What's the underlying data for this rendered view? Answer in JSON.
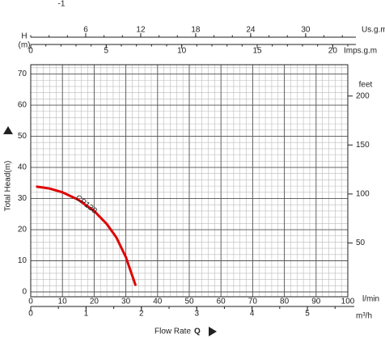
{
  "chart_data": {
    "type": "line",
    "corner_note": "-1",
    "y_title": "Total Head(m)",
    "x_title": "Flow Rate",
    "x_symbol": "Q",
    "head_label": "H",
    "head_unit": "(m)",
    "x_label": "l/min",
    "xlim": [
      0,
      100
    ],
    "xticks": [
      0,
      10,
      20,
      30,
      40,
      50,
      60,
      70,
      80,
      90,
      100
    ],
    "ylim": [
      0,
      73
    ],
    "yticks": [
      0,
      10,
      20,
      30,
      40,
      50,
      60,
      70
    ],
    "grid": true,
    "y2_label": "feet",
    "y2lim": [
      0,
      232
    ],
    "y2ticks": [
      50,
      100,
      150,
      200
    ],
    "top_axes": [
      {
        "label": "Us.g.m",
        "xlim": [
          0,
          34.6
        ],
        "xticks": [
          6,
          12,
          18,
          24,
          30
        ]
      },
      {
        "label": "Imps.g.m",
        "xlim": [
          0,
          21
        ],
        "xticks": [
          0,
          5,
          10,
          15,
          20
        ]
      }
    ],
    "bottom_axis": {
      "label": "m³/h",
      "xlim": [
        0,
        5.73
      ],
      "xticks": [
        0,
        1,
        2,
        3,
        4,
        5
      ]
    },
    "series": [
      {
        "name": "CP130",
        "color": "#e00000",
        "x": [
          2,
          6,
          10,
          15,
          20,
          24,
          27,
          30,
          33
        ],
        "values": [
          33.8,
          33.2,
          32,
          29.6,
          26,
          21.8,
          17.5,
          11.2,
          2.3
        ]
      }
    ]
  }
}
